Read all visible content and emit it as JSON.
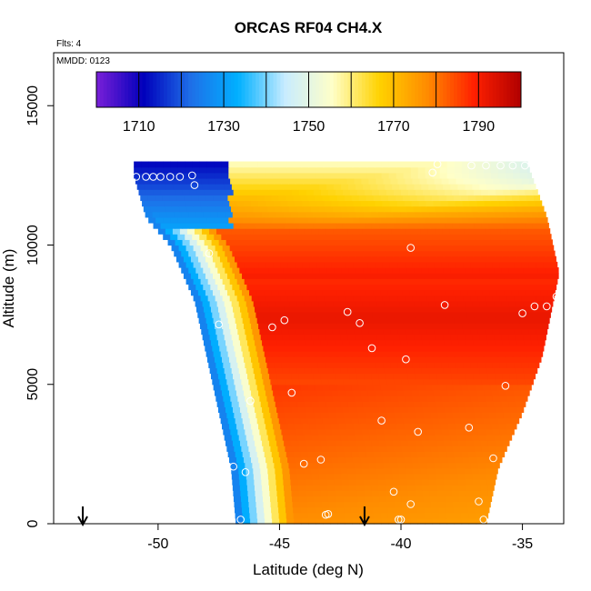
{
  "chart_data": {
    "type": "heatmap",
    "title": "ORCAS RF04 CH4.X",
    "flights_note": "Flts: 4",
    "date_note": "MMDD: 0123",
    "xlabel": "Latitude (deg N)",
    "ylabel": "Altitude (m)",
    "xlim": [
      -54.3,
      -33.3
    ],
    "ylim": [
      0,
      16900
    ],
    "x_ticks": [
      -50,
      -45,
      -40,
      -35
    ],
    "x_tick_labels": [
      "-50",
      "-45",
      "-40",
      "-35"
    ],
    "y_ticks": [
      0,
      5000,
      10000,
      15000
    ],
    "y_tick_labels": [
      "0",
      "5000",
      "10000",
      "15000"
    ],
    "colorbar": {
      "min": 1700,
      "max": 1800,
      "breaks": [
        1700,
        1710,
        1720,
        1730,
        1740,
        1750,
        1760,
        1770,
        1780,
        1790,
        1800
      ],
      "tick_values": [
        1710,
        1730,
        1750,
        1770,
        1790
      ],
      "tick_labels": [
        "1710",
        "1730",
        "1750",
        "1770",
        "1790"
      ],
      "colors": [
        "#7a1fd8",
        "#0000bb",
        "#1e6fe8",
        "#00b0ff",
        "#c8ecff",
        "#ffffc8",
        "#ffd200",
        "#ff8c00",
        "#ff2000",
        "#b00000"
      ]
    },
    "field": {
      "lat_left_edge": [
        [
          12500,
          -51.0
        ],
        [
          11000,
          -50.5
        ],
        [
          10000,
          -49.5
        ],
        [
          8000,
          -48.5
        ],
        [
          6000,
          -48.0
        ],
        [
          4000,
          -47.5
        ],
        [
          2000,
          -47.0
        ],
        [
          0,
          -46.8
        ]
      ],
      "lat_right_edge": [
        [
          12900,
          -34.8
        ],
        [
          11000,
          -34.0
        ],
        [
          9000,
          -33.5
        ],
        [
          6000,
          -34.2
        ],
        [
          4000,
          -35.0
        ],
        [
          2000,
          -36.0
        ],
        [
          0,
          -36.5
        ]
      ],
      "top_altitude": 12900
    },
    "arrows": [
      {
        "lat": -53.1
      },
      {
        "lat": -41.5
      }
    ],
    "observations": [
      {
        "lat": -50.9,
        "alt": 12450
      },
      {
        "lat": -50.5,
        "alt": 12450
      },
      {
        "lat": -50.2,
        "alt": 12450
      },
      {
        "lat": -49.9,
        "alt": 12450
      },
      {
        "lat": -49.5,
        "alt": 12450
      },
      {
        "lat": -49.1,
        "alt": 12450
      },
      {
        "lat": -48.6,
        "alt": 12500
      },
      {
        "lat": -48.5,
        "alt": 12150
      },
      {
        "lat": -38.7,
        "alt": 12600
      },
      {
        "lat": -38.5,
        "alt": 12900
      },
      {
        "lat": -37.1,
        "alt": 12850
      },
      {
        "lat": -36.5,
        "alt": 12850
      },
      {
        "lat": -35.9,
        "alt": 12850
      },
      {
        "lat": -35.4,
        "alt": 12850
      },
      {
        "lat": -34.9,
        "alt": 12850
      },
      {
        "lat": -33.5,
        "alt": 10050
      },
      {
        "lat": -39.6,
        "alt": 9900
      },
      {
        "lat": -47.9,
        "alt": 9700
      },
      {
        "lat": -38.2,
        "alt": 7850
      },
      {
        "lat": -34.5,
        "alt": 7800
      },
      {
        "lat": -34.0,
        "alt": 7800
      },
      {
        "lat": -33.6,
        "alt": 8150
      },
      {
        "lat": -42.2,
        "alt": 7600
      },
      {
        "lat": -35.0,
        "alt": 7550
      },
      {
        "lat": -44.8,
        "alt": 7300
      },
      {
        "lat": -41.7,
        "alt": 7200
      },
      {
        "lat": -47.5,
        "alt": 7150
      },
      {
        "lat": -45.3,
        "alt": 7050
      },
      {
        "lat": -41.2,
        "alt": 6300
      },
      {
        "lat": -39.8,
        "alt": 5900
      },
      {
        "lat": -35.7,
        "alt": 4950
      },
      {
        "lat": -44.5,
        "alt": 4700
      },
      {
        "lat": -46.2,
        "alt": 4400
      },
      {
        "lat": -40.8,
        "alt": 3700
      },
      {
        "lat": -37.2,
        "alt": 3450
      },
      {
        "lat": -39.3,
        "alt": 3300
      },
      {
        "lat": -36.2,
        "alt": 2350
      },
      {
        "lat": -43.3,
        "alt": 2300
      },
      {
        "lat": -44.0,
        "alt": 2150
      },
      {
        "lat": -46.9,
        "alt": 2050
      },
      {
        "lat": -46.4,
        "alt": 1850
      },
      {
        "lat": -40.3,
        "alt": 1150
      },
      {
        "lat": -36.8,
        "alt": 800
      },
      {
        "lat": -39.6,
        "alt": 700
      },
      {
        "lat": -43.0,
        "alt": 350
      },
      {
        "lat": -43.1,
        "alt": 320
      },
      {
        "lat": -46.6,
        "alt": 150
      },
      {
        "lat": -40.1,
        "alt": 150
      },
      {
        "lat": -40.0,
        "alt": 150
      },
      {
        "lat": -36.6,
        "alt": 150
      }
    ]
  }
}
